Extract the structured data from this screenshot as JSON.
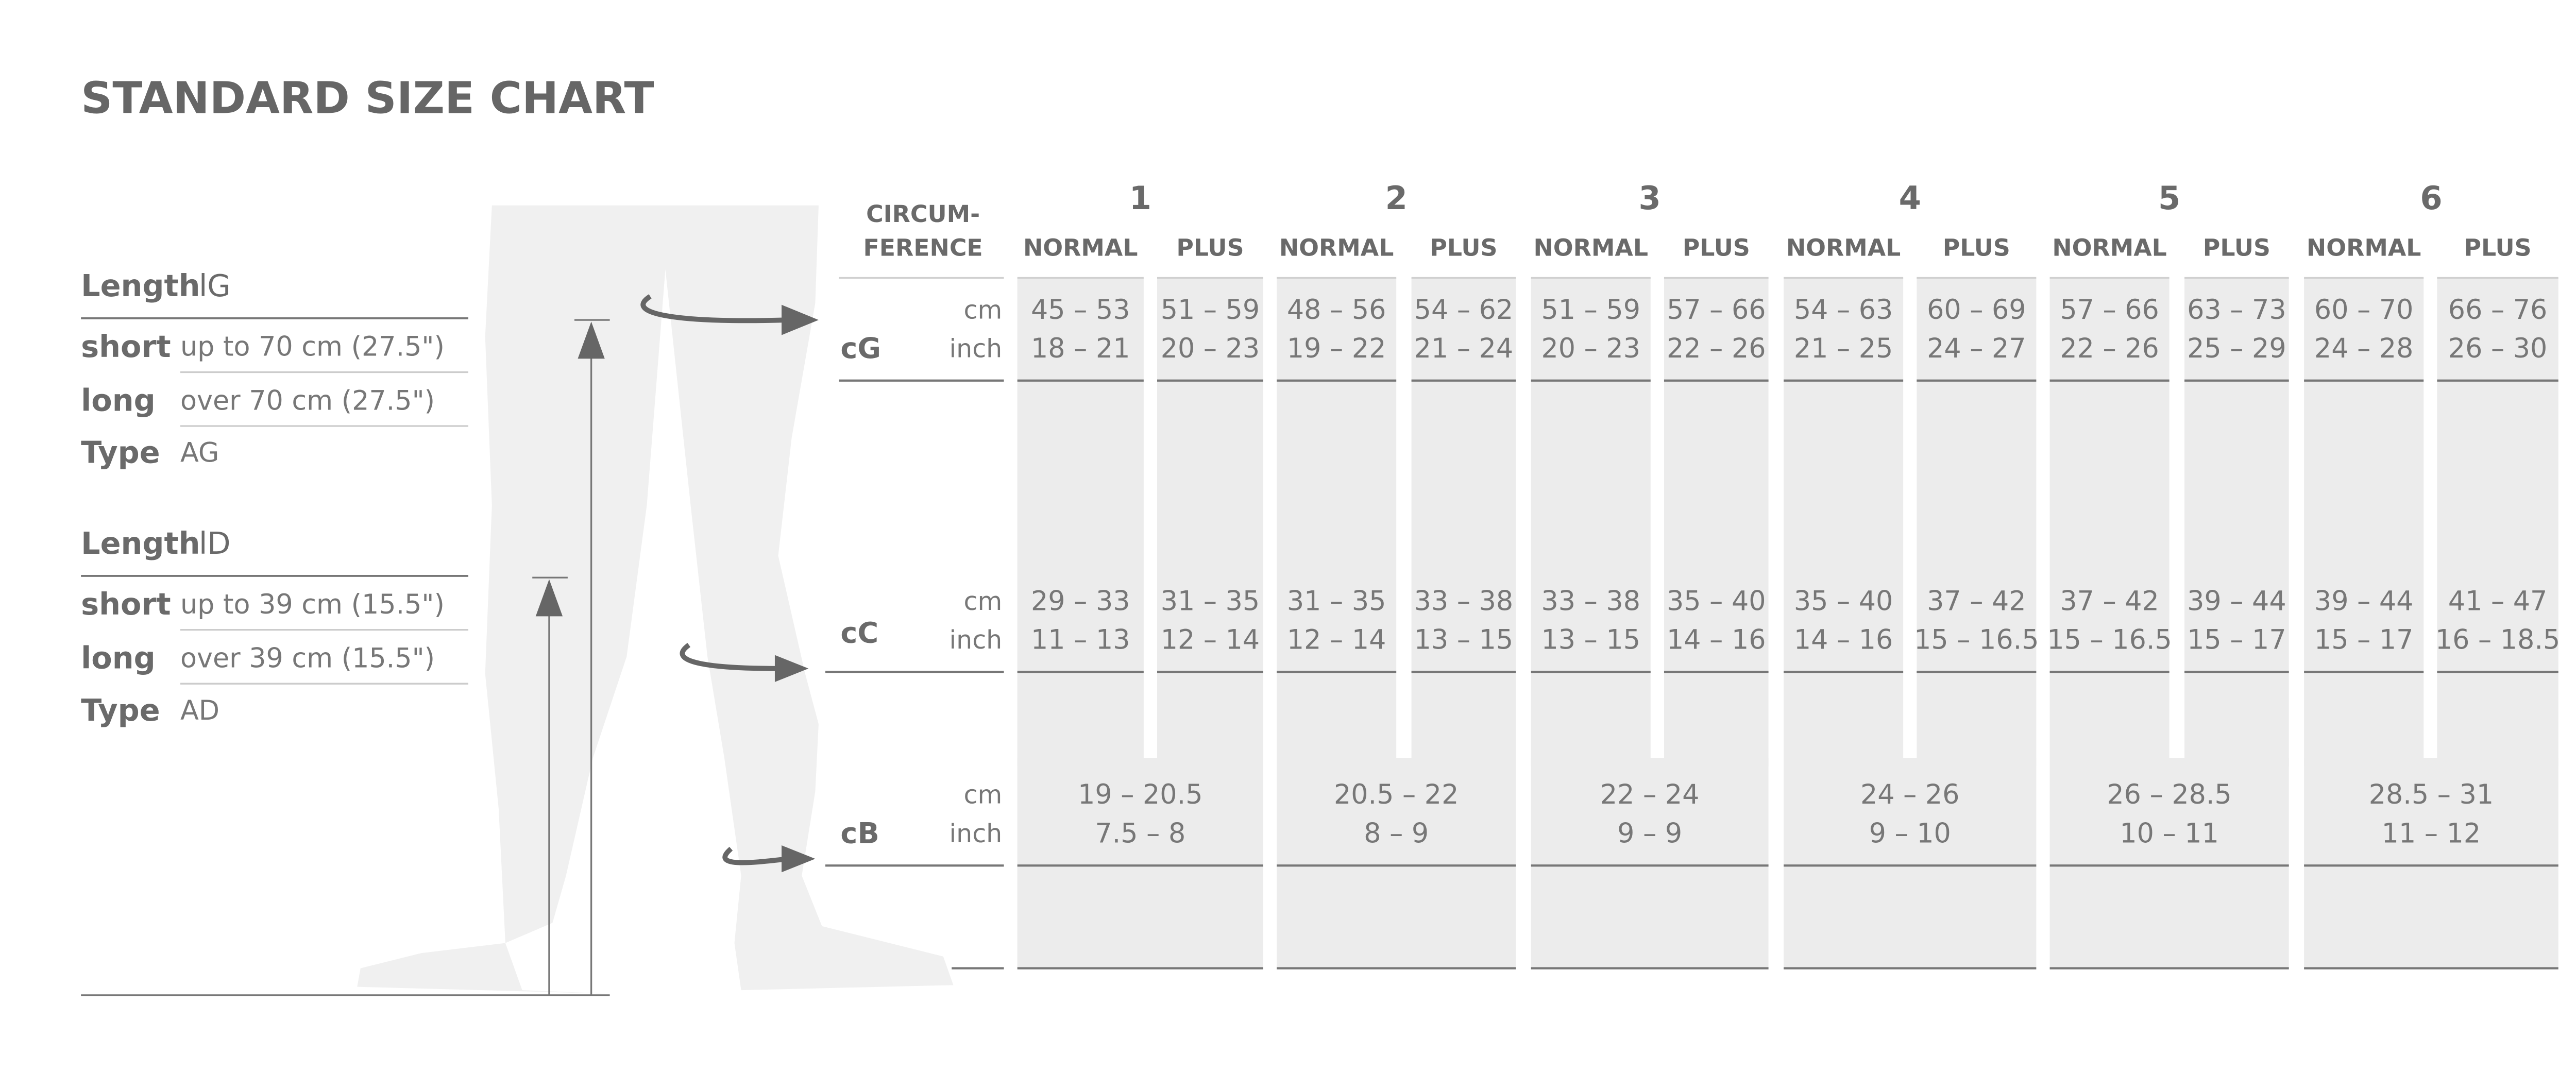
{
  "header": {
    "title": "STANDARD SIZE CHART"
  },
  "lengths": [
    {
      "label": "Length",
      "symbol": "lG",
      "rows": [
        {
          "key": "short",
          "value": "up to 70 cm (27.5\")"
        },
        {
          "key": "long",
          "value": "over 70 cm (27.5\")"
        },
        {
          "key": "Type",
          "value": "AG"
        }
      ]
    },
    {
      "label": "Length",
      "symbol": "lD",
      "rows": [
        {
          "key": "short",
          "value": "up to 39 cm (15.5\")"
        },
        {
          "key": "long",
          "value": "over 39 cm (15.5\")"
        },
        {
          "key": "Type",
          "value": "AD"
        }
      ]
    }
  ],
  "table": {
    "corner": [
      "CIRCUM-",
      "FERENCE"
    ],
    "sizes": [
      {
        "label": "1",
        "columns": [
          "NORMAL",
          "PLUS"
        ]
      },
      {
        "label": "2",
        "columns": [
          "NORMAL",
          "PLUS"
        ]
      },
      {
        "label": "3",
        "columns": [
          "NORMAL",
          "PLUS"
        ]
      },
      {
        "label": "4",
        "columns": [
          "NORMAL",
          "PLUS"
        ]
      },
      {
        "label": "5",
        "columns": [
          "NORMAL",
          "PLUS"
        ]
      },
      {
        "label": "6",
        "columns": [
          "NORMAL",
          "PLUS"
        ]
      }
    ],
    "rows": [
      {
        "label": "cG",
        "units": [
          "cm",
          "inch"
        ],
        "cells": [
          [
            "45 – 53",
            "18 – 21"
          ],
          [
            "51 – 59",
            "20 – 23"
          ],
          [
            "48 – 56",
            "19 – 22"
          ],
          [
            "54 – 62",
            "21 – 24"
          ],
          [
            "51 – 59",
            "20 – 23"
          ],
          [
            "57 – 66",
            "22 – 26"
          ],
          [
            "54 – 63",
            "21 – 25"
          ],
          [
            "60 – 69",
            "24 – 27"
          ],
          [
            "57 – 66",
            "22 – 26"
          ],
          [
            "63 – 73",
            "25 – 29"
          ],
          [
            "60 – 70",
            "24 – 28"
          ],
          [
            "66 – 76",
            "26 – 30"
          ]
        ]
      },
      {
        "label": "cC",
        "units": [
          "cm",
          "inch"
        ],
        "cells": [
          [
            "29 – 33",
            "11 – 13"
          ],
          [
            "31 – 35",
            "12 – 14"
          ],
          [
            "31 – 35",
            "12 – 14"
          ],
          [
            "33 – 38",
            "13 – 15"
          ],
          [
            "33 – 38",
            "13 – 15"
          ],
          [
            "35 – 40",
            "14 – 16"
          ],
          [
            "35 – 40",
            "14 – 16"
          ],
          [
            "37 – 42",
            "15 – 16.5"
          ],
          [
            "37 – 42",
            "15 – 16.5"
          ],
          [
            "39 – 44",
            "15 – 17"
          ],
          [
            "39 – 44",
            "15 – 17"
          ],
          [
            "41 – 47",
            "16 – 18.5"
          ]
        ]
      },
      {
        "label": "cB",
        "units": [
          "cm",
          "inch"
        ],
        "cells": [
          [
            "19 – 20.5",
            "7.5 – 8"
          ],
          [
            "20.5 – 22",
            "8 – 9"
          ],
          [
            "22 – 24",
            "9 – 9"
          ],
          [
            "24 – 26",
            "9 – 10"
          ],
          [
            "26 – 28.5",
            "10 – 11"
          ],
          [
            "28.5 – 31",
            "11 – 12"
          ]
        ]
      }
    ]
  }
}
